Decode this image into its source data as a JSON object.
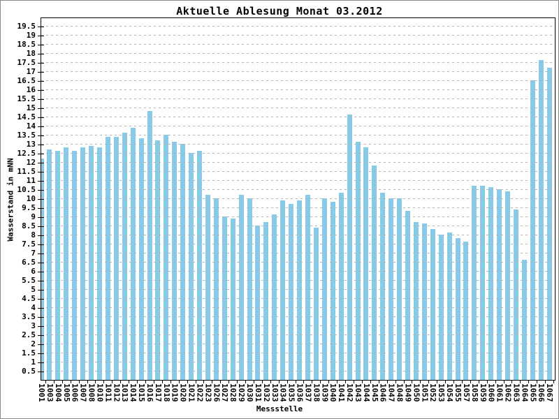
{
  "title": "Aktuelle Ablesung Monat 03.2012",
  "chart_data": {
    "type": "bar",
    "title": "Aktuelle Ablesung Monat 03.2012",
    "xlabel": "Messstelle",
    "ylabel": "Wasserstand in mNN",
    "ylim": [
      0,
      20
    ],
    "ytick_step": 0.5,
    "ytick_label_min": 0.5,
    "ytick_label_max": 19.5,
    "grid": "horizontal-dashed",
    "legend_position": "none",
    "bar_color": "#87cbe8",
    "grid_color": "#b4b4b4",
    "categories": [
      "1001",
      "1003",
      "1004",
      "1005",
      "1006",
      "1007",
      "1008",
      "1010",
      "1011",
      "1012",
      "1013",
      "1014",
      "1015",
      "1016",
      "1017",
      "1018",
      "1019",
      "1020",
      "1021",
      "1022",
      "1023",
      "1026",
      "1027",
      "1028",
      "1029",
      "1030",
      "1031",
      "1032",
      "1033",
      "1034",
      "1035",
      "1036",
      "1037",
      "1038",
      "1039",
      "1040",
      "1041",
      "1042",
      "1043",
      "1044",
      "1045",
      "1046",
      "1047",
      "1048",
      "1049",
      "1050",
      "1051",
      "1052",
      "1053",
      "1054",
      "1055",
      "1057",
      "1058",
      "1059",
      "1060",
      "1061",
      "1062",
      "1063",
      "1064",
      "1065",
      "1066",
      "1067"
    ],
    "values": [
      12.2,
      12.7,
      12.6,
      12.8,
      12.6,
      12.8,
      12.9,
      12.8,
      13.4,
      13.4,
      13.6,
      13.9,
      13.3,
      14.8,
      13.2,
      13.5,
      13.1,
      13.0,
      12.5,
      12.6,
      10.2,
      10.0,
      9.0,
      8.9,
      10.2,
      10.0,
      8.5,
      8.7,
      9.1,
      9.9,
      9.7,
      9.9,
      10.2,
      8.4,
      10.0,
      9.8,
      10.3,
      14.6,
      13.1,
      12.8,
      11.8,
      10.3,
      10.0,
      10.0,
      9.3,
      8.7,
      8.6,
      8.3,
      8.0,
      8.1,
      7.8,
      7.6,
      10.7,
      10.7,
      10.6,
      10.5,
      10.4,
      9.4,
      6.6,
      16.5,
      17.6,
      17.2
    ]
  }
}
